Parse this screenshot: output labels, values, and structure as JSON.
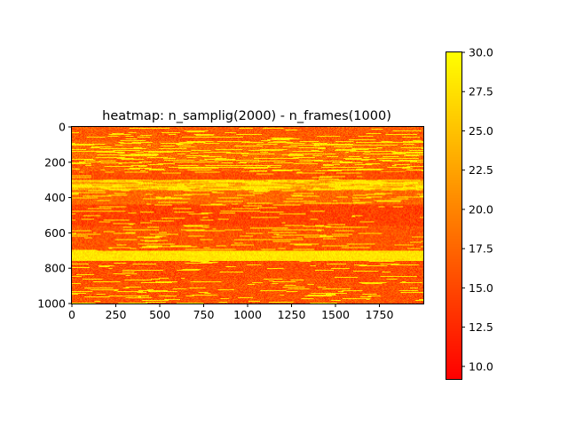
{
  "chart_data": {
    "type": "heatmap",
    "title": "heatmap:  n_samplig(2000) - n_frames(1000)",
    "xlabel": "",
    "ylabel": "",
    "colormap": "autumn",
    "colormap_stops": [
      "#ff0000",
      "#ffff00"
    ],
    "x_range": [
      0,
      2000
    ],
    "y_range": [
      0,
      1000
    ],
    "y_inverted": true,
    "x_ticks": [
      0,
      250,
      500,
      750,
      1000,
      1250,
      1500,
      1750
    ],
    "x_tick_labels": [
      "0",
      "250",
      "500",
      "750",
      "1000",
      "1250",
      "1500",
      "1750"
    ],
    "y_ticks": [
      0,
      200,
      400,
      600,
      800,
      1000
    ],
    "y_tick_labels": [
      "0",
      "200",
      "400",
      "600",
      "800",
      "1000"
    ],
    "colorbar": {
      "vmin": 9.2,
      "vmax": 30.0,
      "ticks": [
        10.0,
        12.5,
        15.0,
        17.5,
        20.0,
        22.5,
        25.0,
        27.5,
        30.0
      ],
      "tick_labels": [
        "10.0",
        "12.5",
        "15.0",
        "17.5",
        "20.0",
        "22.5",
        "25.0",
        "27.5",
        "30.0"
      ]
    },
    "row_bands": [
      {
        "y_start": 0,
        "y_end": 80,
        "mean": 16.5,
        "hot_fraction": 0.12
      },
      {
        "y_start": 80,
        "y_end": 180,
        "mean": 18.0,
        "hot_fraction": 0.3
      },
      {
        "y_start": 180,
        "y_end": 250,
        "mean": 17.0,
        "hot_fraction": 0.35
      },
      {
        "y_start": 250,
        "y_end": 300,
        "mean": 15.5,
        "hot_fraction": 0.1
      },
      {
        "y_start": 300,
        "y_end": 360,
        "mean": 22.0,
        "hot_fraction": 0.6
      },
      {
        "y_start": 360,
        "y_end": 440,
        "mean": 17.5,
        "hot_fraction": 0.18
      },
      {
        "y_start": 440,
        "y_end": 560,
        "mean": 14.5,
        "hot_fraction": 0.08
      },
      {
        "y_start": 560,
        "y_end": 700,
        "mean": 16.0,
        "hot_fraction": 0.15
      },
      {
        "y_start": 700,
        "y_end": 760,
        "mean": 27.0,
        "hot_fraction": 0.9
      },
      {
        "y_start": 760,
        "y_end": 860,
        "mean": 15.5,
        "hot_fraction": 0.12
      },
      {
        "y_start": 860,
        "y_end": 1000,
        "mean": 16.0,
        "hot_fraction": 0.15
      }
    ]
  }
}
